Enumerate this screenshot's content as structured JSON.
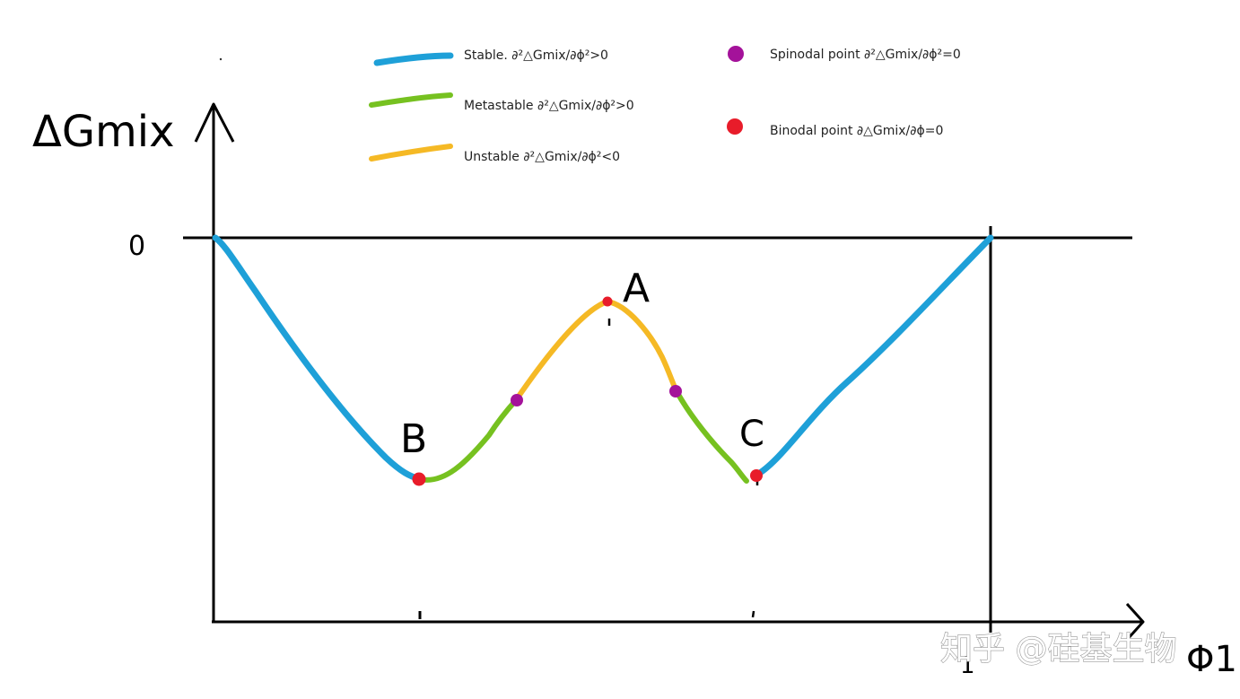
{
  "axes": {
    "y_label": "ΔGmix",
    "x_label": "Φ1",
    "zero_label": "0",
    "one_label": "1"
  },
  "points": {
    "A": "A",
    "B": "B",
    "C": "C"
  },
  "legend": {
    "stable": {
      "label": "Stable. ∂²△Gmix/∂ϕ²>0",
      "color": "#1ea0d8"
    },
    "metastable": {
      "label": "Metastable ∂²△Gmix/∂ϕ²>0",
      "color": "#76c120"
    },
    "unstable": {
      "label": "Unstable ∂²△Gmix/∂ϕ²<0",
      "color": "#f5b925"
    },
    "spinodal": {
      "label": "Spinodal point  ∂²△Gmix/∂ϕ²=0",
      "color": "#a4129a"
    },
    "binodal": {
      "label": "Binodal point  ∂△Gmix/∂ϕ=0",
      "color": "#e81c2a"
    }
  },
  "watermark": "知乎 @硅基生物"
}
